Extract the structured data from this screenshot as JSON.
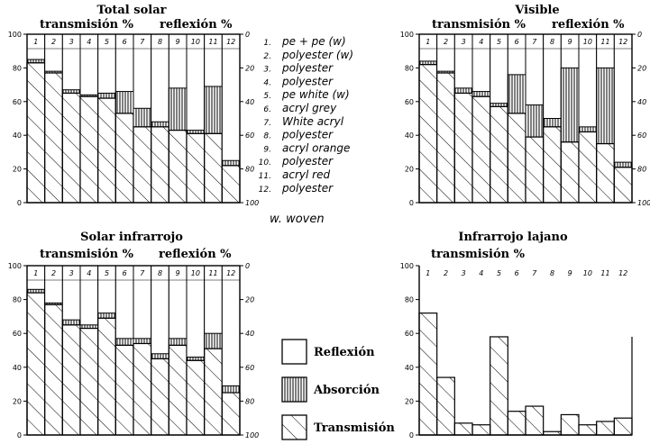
{
  "chart_data": [
    {
      "type": "bar",
      "title": "Total solar",
      "left_label": "transmisión %",
      "right_label": "reflexión %",
      "yticks": [
        "100",
        "80",
        "60",
        "40",
        "20",
        "0"
      ],
      "rticks": [
        "0",
        "20",
        "40",
        "60",
        "80",
        "100"
      ],
      "categories": [
        "1",
        "2",
        "3",
        "4",
        "5",
        "6",
        "7",
        "8",
        "9",
        "10",
        "11",
        "12"
      ],
      "transmission": [
        83,
        77,
        65,
        63,
        62,
        53,
        45,
        45,
        43,
        41,
        41,
        22
      ],
      "absorption": [
        2,
        1,
        2,
        1,
        3,
        13,
        11,
        3,
        25,
        2,
        28,
        3
      ],
      "reflection": [
        15,
        22,
        33,
        36,
        35,
        34,
        44,
        52,
        32,
        57,
        31,
        75
      ]
    },
    {
      "type": "bar",
      "title": "Visible",
      "left_label": "transmisión %",
      "right_label": "reflexión %",
      "yticks": [
        "100",
        "80",
        "60",
        "40",
        "20",
        "0"
      ],
      "rticks": [
        "0",
        "20",
        "40",
        "60",
        "80",
        "100"
      ],
      "categories": [
        "1",
        "2",
        "3",
        "4",
        "5",
        "6",
        "7",
        "8",
        "9",
        "10",
        "11",
        "12"
      ],
      "transmission": [
        82,
        77,
        65,
        63,
        57,
        53,
        39,
        45,
        36,
        42,
        35,
        21
      ],
      "absorption": [
        2,
        1,
        3,
        3,
        2,
        23,
        19,
        5,
        44,
        3,
        45,
        3
      ],
      "reflection": [
        16,
        22,
        32,
        34,
        41,
        24,
        42,
        50,
        20,
        55,
        20,
        76
      ]
    },
    {
      "type": "bar",
      "title": "Solar infrarrojo",
      "left_label": "transmisión %",
      "right_label": "reflexión %",
      "yticks": [
        "100",
        "80",
        "60",
        "40",
        "20",
        "0"
      ],
      "rticks": [
        "0",
        "20",
        "40",
        "60",
        "80",
        "100"
      ],
      "categories": [
        "1",
        "2",
        "3",
        "4",
        "5",
        "6",
        "7",
        "8",
        "9",
        "10",
        "11",
        "12"
      ],
      "transmission": [
        84,
        77,
        65,
        63,
        69,
        53,
        54,
        45,
        53,
        44,
        51,
        25
      ],
      "absorption": [
        2,
        1,
        3,
        2,
        3,
        4,
        3,
        3,
        4,
        2,
        9,
        4
      ],
      "reflection": [
        14,
        22,
        32,
        35,
        28,
        43,
        43,
        52,
        43,
        54,
        40,
        71
      ]
    },
    {
      "type": "bar",
      "title": "Infrarrojo lajano",
      "left_label": "transmisión %",
      "yticks": [
        "100",
        "80",
        "60",
        "40",
        "20",
        "0"
      ],
      "categories": [
        "1",
        "2",
        "3",
        "4",
        "5",
        "6",
        "7",
        "8",
        "9",
        "10",
        "11",
        "12"
      ],
      "transmission": [
        72,
        34,
        7,
        6,
        58,
        14,
        17,
        2,
        12,
        6,
        8,
        10
      ]
    }
  ],
  "materials": [
    {
      "num": "1.",
      "name": "pe + pe (w)"
    },
    {
      "num": "2.",
      "name": "polyester (w)"
    },
    {
      "num": "3.",
      "name": "polyester"
    },
    {
      "num": "4.",
      "name": "polyester"
    },
    {
      "num": "5.",
      "name": "pe white (w)"
    },
    {
      "num": "6.",
      "name": "acryl grey"
    },
    {
      "num": "7.",
      "name": "White acryl"
    },
    {
      "num": "8.",
      "name": "polyester"
    },
    {
      "num": "9.",
      "name": "acryl orange"
    },
    {
      "num": "10.",
      "name": "polyester"
    },
    {
      "num": "11.",
      "name": "acryl red"
    },
    {
      "num": "12.",
      "name": "polyester"
    }
  ],
  "woven_note": "w. woven",
  "legend": [
    {
      "key": "reflection",
      "label": "Reflexión"
    },
    {
      "key": "absorption",
      "label": "Absorción"
    },
    {
      "key": "transmission",
      "label": "Transmisión"
    }
  ]
}
